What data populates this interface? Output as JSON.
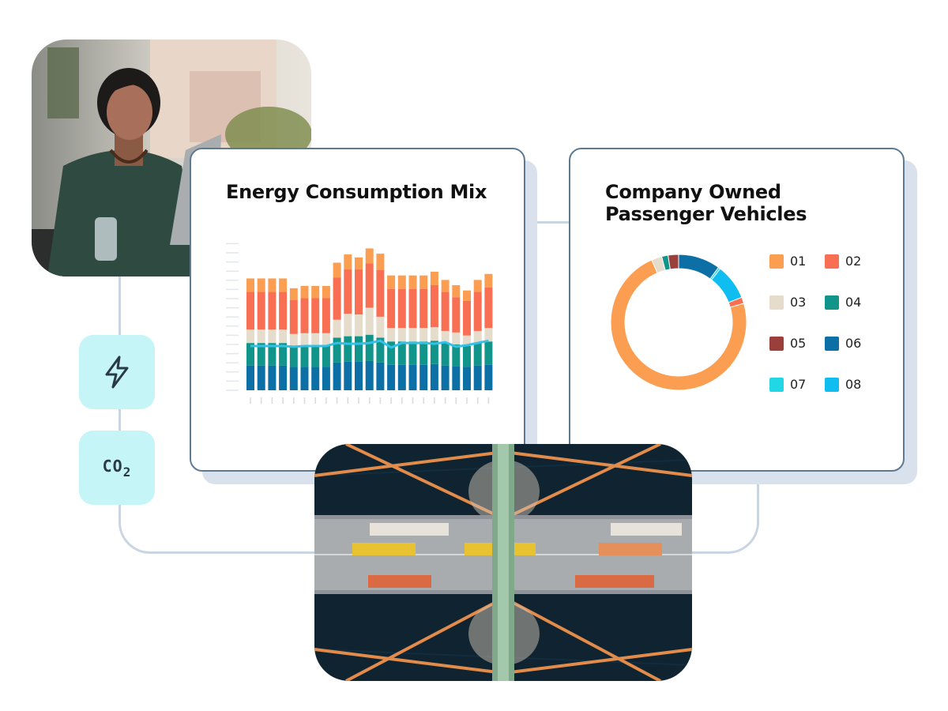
{
  "energy_card": {
    "title": "Energy Consumption Mix"
  },
  "vehicles_card": {
    "title_line1": "Company Owned",
    "title_line2": "Passenger Vehicles"
  },
  "icons": {
    "bolt": "lightning-bolt-icon",
    "co2_label": "CO",
    "co2_sub": "2"
  },
  "photos": {
    "top": "woman-working-on-laptop-photo",
    "bottom": "aerial-bridge-traffic-photo"
  },
  "colors": {
    "card_border": "#5e7a93",
    "connector": "#c9d5e1",
    "icon_tile": "#c5f5f7",
    "accent_line": "#33c1e8"
  },
  "chart_data": [
    {
      "type": "bar",
      "stacked": true,
      "title": "Energy Consumption Mix",
      "categories": [
        "1",
        "2",
        "3",
        "4",
        "5",
        "6",
        "7",
        "8",
        "9",
        "10",
        "11",
        "12",
        "13",
        "14",
        "15",
        "16",
        "17",
        "18",
        "19",
        "20",
        "21",
        "22",
        "23"
      ],
      "series": [
        {
          "color": "#0c6fa6",
          "values": [
            33,
            33,
            33,
            33,
            31,
            31,
            31,
            31,
            37,
            38,
            38,
            39,
            37,
            34,
            34,
            34,
            34,
            35,
            33,
            32,
            31,
            33,
            34
          ]
        },
        {
          "color": "#11958b",
          "values": [
            30,
            30,
            30,
            30,
            28,
            29,
            29,
            29,
            33,
            34,
            34,
            35,
            33,
            31,
            31,
            31,
            31,
            31,
            30,
            29,
            28,
            30,
            31
          ]
        },
        {
          "color": "#e5dccc",
          "values": [
            18,
            18,
            18,
            18,
            16,
            16,
            16,
            16,
            24,
            30,
            29,
            36,
            28,
            18,
            18,
            18,
            18,
            18,
            16,
            16,
            14,
            16,
            18
          ]
        },
        {
          "color": "#f86f54",
          "values": [
            50,
            50,
            50,
            50,
            45,
            47,
            47,
            47,
            56,
            59,
            60,
            59,
            62,
            52,
            52,
            52,
            52,
            56,
            52,
            47,
            46,
            52,
            54
          ]
        },
        {
          "color": "#fb9e52",
          "values": [
            18,
            18,
            18,
            18,
            16,
            16,
            16,
            16,
            20,
            20,
            16,
            20,
            22,
            18,
            18,
            18,
            18,
            18,
            16,
            16,
            14,
            16,
            18
          ]
        }
      ],
      "overlay_line": {
        "color": "#33c1e8",
        "values": [
          59,
          59,
          59,
          59,
          58,
          59,
          59,
          59,
          63,
          62,
          62,
          63,
          66,
          57,
          63,
          63,
          63,
          62,
          64,
          58,
          60,
          63,
          66
        ]
      },
      "ylim": [
        0,
        200
      ],
      "grid": false
    },
    {
      "type": "pie",
      "donut": true,
      "title": "Company Owned Passenger Vehicles",
      "labels": [
        "01",
        "02",
        "03",
        "04",
        "05",
        "06",
        "07",
        "08"
      ],
      "values": [
        73.0,
        1.5,
        2.5,
        1.5,
        2.5,
        10.0,
        0.5,
        8.5
      ],
      "colors": [
        "#fb9e52",
        "#f86f54",
        "#e5dccc",
        "#11958b",
        "#9b3f3a",
        "#0c6fa6",
        "#22d7e5",
        "#10bdf0"
      ],
      "legend": "right"
    }
  ]
}
